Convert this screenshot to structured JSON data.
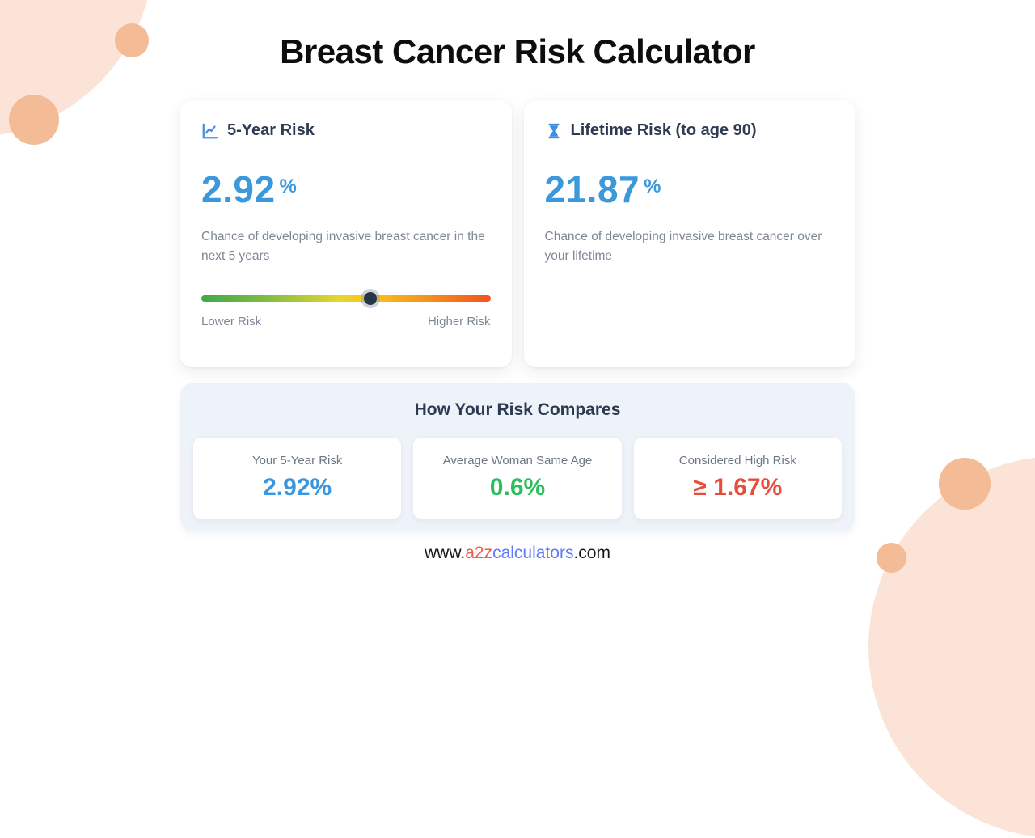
{
  "page": {
    "title": "Breast Cancer Risk Calculator"
  },
  "cards": {
    "five_year": {
      "icon": "line-chart-icon",
      "title": "5-Year Risk",
      "value": "2.92",
      "unit": "%",
      "description": "Chance of developing invasive breast cancer in the next 5 years",
      "slider": {
        "lower_label": "Lower Risk",
        "higher_label": "Higher Risk",
        "position_pct": 58.4
      }
    },
    "lifetime": {
      "icon": "hourglass-icon",
      "title": "Lifetime Risk (to age 90)",
      "value": "21.87",
      "unit": "%",
      "description": "Chance of developing invasive breast cancer over your lifetime"
    }
  },
  "comparison": {
    "title": "How Your Risk Compares",
    "items": [
      {
        "label": "Your 5-Year Risk",
        "value": "2.92%",
        "color": "#3b96e0"
      },
      {
        "label": "Average Woman Same Age",
        "value": "0.6%",
        "color": "#2bbf5c"
      },
      {
        "label": "Considered High Risk",
        "value": "≥ 1.67%",
        "color": "#e84c3d"
      }
    ]
  },
  "footer": {
    "www": "www.",
    "a2z": "a2z",
    "calculators": "calculators",
    "com": ".com"
  },
  "colors": {
    "accent_blue": "#3b98db",
    "icon_blue": "#3e8ee2",
    "green": "#2bbf5c",
    "red": "#e84c3d",
    "panel_bg": "#eef2f9",
    "peach_light": "#fce3d7",
    "peach_dark": "#f3bb96",
    "slider_gradient_start": "#3fa74c",
    "slider_gradient_mid": "#f6c51d",
    "slider_gradient_end": "#f4511e",
    "marker": "#263649"
  }
}
